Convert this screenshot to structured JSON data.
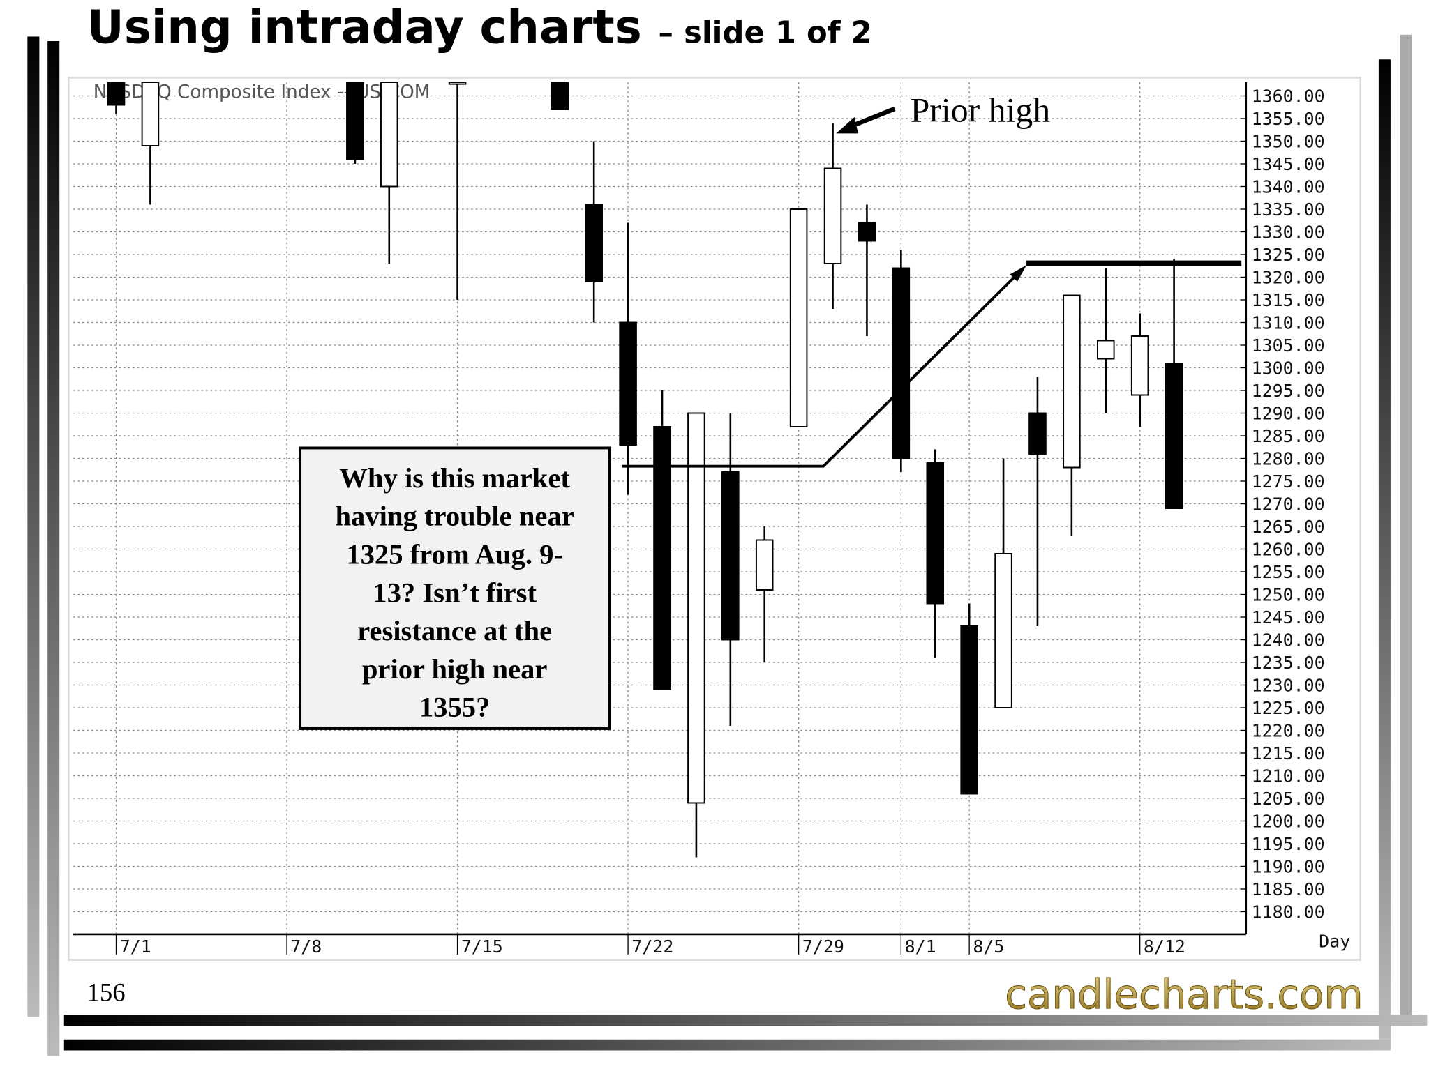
{
  "slide": {
    "title": "Using intraday charts",
    "subtitle": "– slide 1 of 2",
    "page_number": "156",
    "logo": "candlecharts.com"
  },
  "chart_data": {
    "type": "candlestick",
    "watermark": "NASDAQ Composite Index -- US;COM",
    "x_label": "Day",
    "categories": [
      null,
      "7/1",
      null,
      null,
      null,
      null,
      "7/8",
      null,
      null,
      null,
      null,
      "7/15",
      null,
      null,
      null,
      null,
      "7/22",
      null,
      null,
      null,
      null,
      "7/29",
      null,
      null,
      "8/1",
      null,
      "8/5",
      null,
      null,
      null,
      null,
      "8/12",
      null,
      null,
      null
    ],
    "open": [
      null,
      1363,
      1349,
      null,
      null,
      null,
      null,
      null,
      1363,
      1340,
      null,
      1363,
      null,
      null,
      1363,
      1336,
      1310,
      1287,
      1204,
      1277,
      1251,
      1287,
      1323,
      1332,
      1322,
      1279,
      1243,
      1225,
      1290,
      1278,
      1302,
      1294,
      1301,
      null,
      null
    ],
    "high": [
      null,
      1363,
      1363,
      null,
      null,
      null,
      null,
      null,
      1363,
      1363,
      null,
      1363,
      null,
      null,
      1363,
      1350,
      1332,
      1295,
      1290,
      1290,
      1265,
      1335,
      1354,
      1336,
      1326,
      1282,
      1248,
      1280,
      1298,
      1316,
      1322,
      1312,
      1324,
      null,
      null
    ],
    "low": [
      null,
      1356,
      1336,
      null,
      null,
      null,
      null,
      null,
      1345,
      1323,
      null,
      1315,
      null,
      null,
      1357,
      1310,
      1272,
      1229,
      1192,
      1221,
      1235,
      1287,
      1313,
      1307,
      1277,
      1236,
      1206,
      1225,
      1243,
      1263,
      1290,
      1287,
      1269,
      null,
      null
    ],
    "close": [
      null,
      1358,
      1363,
      null,
      null,
      null,
      null,
      null,
      1346,
      1363,
      null,
      1363,
      null,
      null,
      1357,
      1319,
      1283,
      1229,
      1290,
      1240,
      1262,
      1335,
      1344,
      1328,
      1280,
      1248,
      1206,
      1259,
      1281,
      1316,
      1306,
      1307,
      1269,
      null,
      null
    ],
    "up_color": "#ffffff",
    "down_color": "#000000",
    "ylim": [
      1175,
      1363
    ],
    "yticks": [
      {
        "value": 1180,
        "label": "1180.00"
      },
      {
        "value": 1185,
        "label": "1185.00"
      },
      {
        "value": 1190,
        "label": "1190.00"
      },
      {
        "value": 1195,
        "label": "1195.00"
      },
      {
        "value": 1200,
        "label": "1200.00"
      },
      {
        "value": 1205,
        "label": "1205.00"
      },
      {
        "value": 1210,
        "label": "1210.00"
      },
      {
        "value": 1215,
        "label": "1215.00"
      },
      {
        "value": 1220,
        "label": "1220.00"
      },
      {
        "value": 1225,
        "label": "1225.00"
      },
      {
        "value": 1230,
        "label": "1230.00"
      },
      {
        "value": 1235,
        "label": "1235.00"
      },
      {
        "value": 1240,
        "label": "1240.00"
      },
      {
        "value": 1245,
        "label": "1245.00"
      },
      {
        "value": 1250,
        "label": "1250.00"
      },
      {
        "value": 1255,
        "label": "1255.00"
      },
      {
        "value": 1260,
        "label": "1260.00"
      },
      {
        "value": 1265,
        "label": "1265.00"
      },
      {
        "value": 1270,
        "label": "1270.00"
      },
      {
        "value": 1275,
        "label": "1275.00"
      },
      {
        "value": 1280,
        "label": "1280.00"
      },
      {
        "value": 1285,
        "label": "1285.00"
      },
      {
        "value": 1290,
        "label": "1290.00"
      },
      {
        "value": 1295,
        "label": "1295.00"
      },
      {
        "value": 1300,
        "label": "1300.00"
      },
      {
        "value": 1305,
        "label": "1305.00"
      },
      {
        "value": 1310,
        "label": "1310.00"
      },
      {
        "value": 1315,
        "label": "1315.00"
      },
      {
        "value": 1320,
        "label": "1320.00"
      },
      {
        "value": 1325,
        "label": "1325.00"
      },
      {
        "value": 1330,
        "label": "1330.00"
      },
      {
        "value": 1335,
        "label": "1335.00"
      },
      {
        "value": 1340,
        "label": "1340.00"
      },
      {
        "value": 1345,
        "label": "1345.00"
      },
      {
        "value": 1350,
        "label": "1350.00"
      },
      {
        "value": 1355,
        "label": "1355.00"
      },
      {
        "value": 1360,
        "label": "1360.00"
      }
    ],
    "grid": true,
    "annotations": {
      "prior_high": "Prior high",
      "question": [
        "Why is this market",
        "having trouble near",
        "1325 from Aug. 9-",
        "13? Isn’t first",
        "resistance at the",
        "prior high near",
        "1355?"
      ]
    }
  }
}
